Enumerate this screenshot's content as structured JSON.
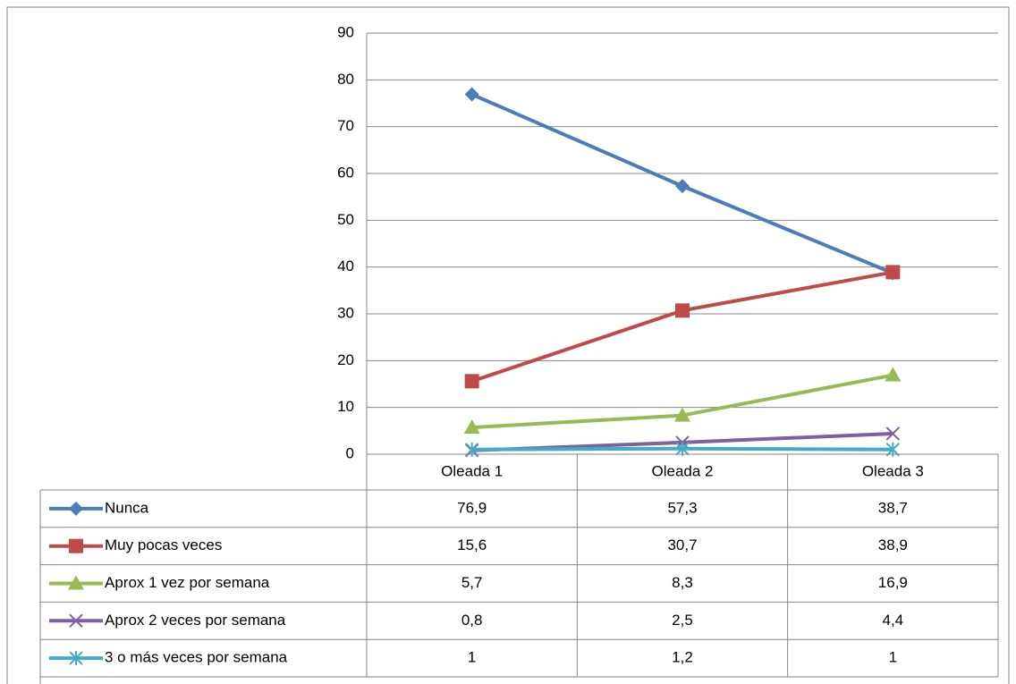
{
  "chart_data": {
    "type": "line",
    "categories": [
      "Oleada 1",
      "Oleada 2",
      "Oleada 3"
    ],
    "series": [
      {
        "name": "Nunca",
        "color": "#4a7ebb",
        "marker": "diamond",
        "values": [
          76.9,
          57.3,
          38.7
        ],
        "value_labels": [
          "76,9",
          "57,3",
          "38,7"
        ]
      },
      {
        "name": "Muy pocas veces",
        "color": "#be4b48",
        "marker": "square",
        "values": [
          15.6,
          30.7,
          38.9
        ],
        "value_labels": [
          "15,6",
          "30,7",
          "38,9"
        ]
      },
      {
        "name": "Aprox 1 vez por semana",
        "color": "#98b954",
        "marker": "triangle",
        "values": [
          5.7,
          8.3,
          16.9
        ],
        "value_labels": [
          "5,7",
          "8,3",
          "16,9"
        ]
      },
      {
        "name": "Aprox 2 veces por semana",
        "color": "#7d60a0",
        "marker": "x",
        "values": [
          0.8,
          2.5,
          4.4
        ],
        "value_labels": [
          "0,8",
          "2,5",
          "4,4"
        ]
      },
      {
        "name": "3 o más veces por semana",
        "color": "#46aac5",
        "marker": "star",
        "values": [
          1,
          1.2,
          1
        ],
        "value_labels": [
          "1",
          "1,2",
          "1"
        ]
      }
    ],
    "ylim": [
      0,
      90
    ],
    "yticks": [
      0,
      10,
      20,
      30,
      40,
      50,
      60,
      70,
      80,
      90
    ],
    "grid": true
  }
}
